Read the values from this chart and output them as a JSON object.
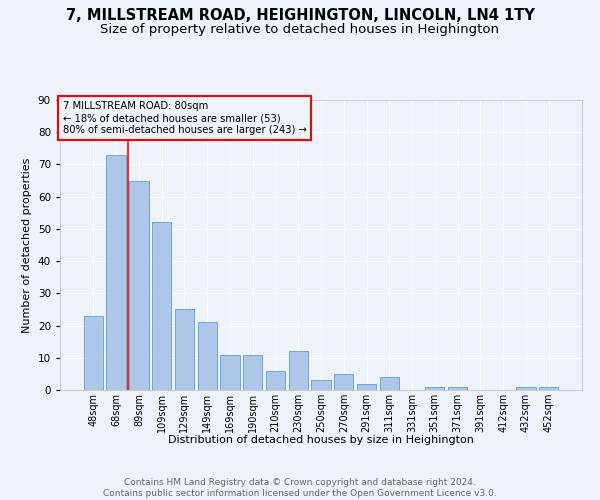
{
  "title": "7, MILLSTREAM ROAD, HEIGHINGTON, LINCOLN, LN4 1TY",
  "subtitle": "Size of property relative to detached houses in Heighington",
  "xlabel": "Distribution of detached houses by size in Heighington",
  "ylabel": "Number of detached properties",
  "categories": [
    "48sqm",
    "68sqm",
    "89sqm",
    "109sqm",
    "129sqm",
    "149sqm",
    "169sqm",
    "190sqm",
    "210sqm",
    "230sqm",
    "250sqm",
    "270sqm",
    "291sqm",
    "311sqm",
    "331sqm",
    "351sqm",
    "371sqm",
    "391sqm",
    "412sqm",
    "432sqm",
    "452sqm"
  ],
  "values": [
    23,
    73,
    65,
    52,
    25,
    21,
    11,
    11,
    6,
    12,
    3,
    5,
    2,
    4,
    0,
    1,
    1,
    0,
    0,
    1,
    1
  ],
  "bar_color": "#aec6e8",
  "bar_edge_color": "#5a9fd4",
  "red_line_x": 1.5,
  "annotation_title": "7 MILLSTREAM ROAD: 80sqm",
  "annotation_line1": "← 18% of detached houses are smaller (53)",
  "annotation_line2": "80% of semi-detached houses are larger (243) →",
  "footer": "Contains HM Land Registry data © Crown copyright and database right 2024.\nContains public sector information licensed under the Open Government Licence v3.0.",
  "ylim": [
    0,
    90
  ],
  "bg_color": "#eef2f9",
  "grid_color": "#ffffff",
  "title_fontsize": 10.5,
  "subtitle_fontsize": 9.5,
  "footer_fontsize": 6.5
}
